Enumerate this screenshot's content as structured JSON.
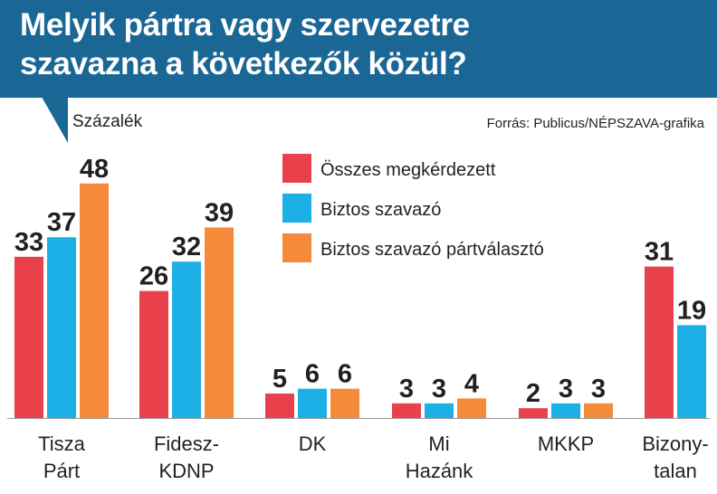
{
  "header": {
    "title_lines": [
      "Melyik pártra vagy szervezetre",
      "szavazna a következők közül?"
    ],
    "unit": "Százalék",
    "source": "Forrás: Publicus/NÉPSZAVA-grafika"
  },
  "colors": {
    "header_bg": "#1a6796",
    "series": [
      "#e8414b",
      "#1cb0e6",
      "#f58a3a"
    ],
    "text": "#231f20"
  },
  "chart_data": {
    "type": "bar",
    "categories": [
      [
        "Tisza",
        "Párt"
      ],
      [
        "Fidesz-",
        "KDNP"
      ],
      [
        "DK"
      ],
      [
        "Mi",
        "Hazánk"
      ],
      [
        "MKKP"
      ],
      [
        "Bizony-",
        "talan"
      ]
    ],
    "series": [
      {
        "name": "Összes megkérdezett",
        "values": [
          33,
          26,
          5,
          3,
          2,
          31
        ]
      },
      {
        "name": "Biztos szavazó",
        "values": [
          37,
          32,
          6,
          3,
          3,
          19
        ]
      },
      {
        "name": "Biztos szavazó pártválasztó",
        "values": [
          48,
          39,
          6,
          4,
          3,
          null
        ]
      }
    ],
    "ylim": [
      0,
      48
    ],
    "grid": false,
    "legend": "top-center"
  }
}
